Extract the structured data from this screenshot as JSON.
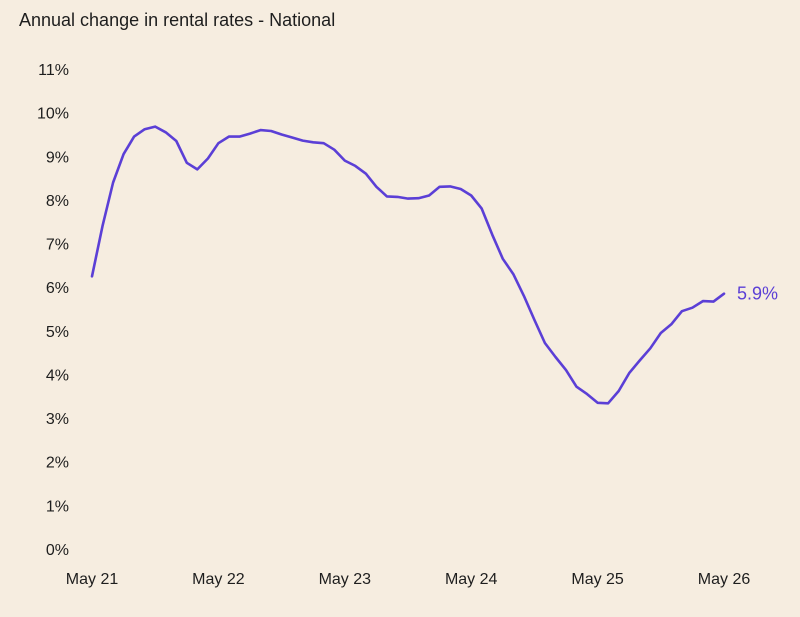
{
  "chart_data": {
    "type": "line",
    "title": "Annual change in rental rates - National",
    "xlabel": "",
    "ylabel": "",
    "x_tick_labels": [
      "May 21",
      "May 22",
      "May 23",
      "May 24",
      "May 25",
      "May 26"
    ],
    "y_tick_labels": [
      "0%",
      "1%",
      "2%",
      "3%",
      "4%",
      "5%",
      "6%",
      "7%",
      "8%",
      "9%",
      "10%",
      "11%"
    ],
    "ylim": [
      0,
      11
    ],
    "xlim": [
      0,
      60
    ],
    "grid": false,
    "legend": "none",
    "end_value_label": "5.9%",
    "series": [
      {
        "color": "#5b3fd6",
        "x": [
          0,
          1,
          2,
          3,
          4,
          5,
          6,
          7,
          8,
          9,
          10,
          11,
          12,
          13,
          14,
          15,
          16,
          17,
          18,
          19,
          20,
          21,
          22,
          23,
          24,
          25,
          26,
          27,
          28,
          29,
          30,
          31,
          32,
          33,
          34,
          35,
          36,
          37,
          38,
          39,
          40,
          41,
          42,
          43,
          44,
          45,
          46,
          47,
          48,
          49,
          50,
          51,
          52,
          53,
          54,
          55,
          56,
          57,
          58,
          59,
          60
        ],
        "y": [
          6.25,
          7.4,
          8.4,
          9.05,
          9.45,
          9.62,
          9.68,
          9.55,
          9.35,
          8.85,
          8.7,
          8.95,
          9.3,
          9.45,
          9.45,
          9.52,
          9.6,
          9.58,
          9.5,
          9.43,
          9.36,
          9.32,
          9.3,
          9.15,
          8.9,
          8.78,
          8.6,
          8.3,
          8.08,
          8.07,
          8.03,
          8.04,
          8.1,
          8.3,
          8.31,
          8.25,
          8.1,
          7.8,
          7.2,
          6.65,
          6.3,
          5.8,
          5.25,
          4.72,
          4.4,
          4.1,
          3.72,
          3.55,
          3.35,
          3.34,
          3.62,
          4.03,
          4.32,
          4.6,
          4.95,
          5.15,
          5.45,
          5.53,
          5.68,
          5.67,
          5.85
        ]
      }
    ]
  }
}
